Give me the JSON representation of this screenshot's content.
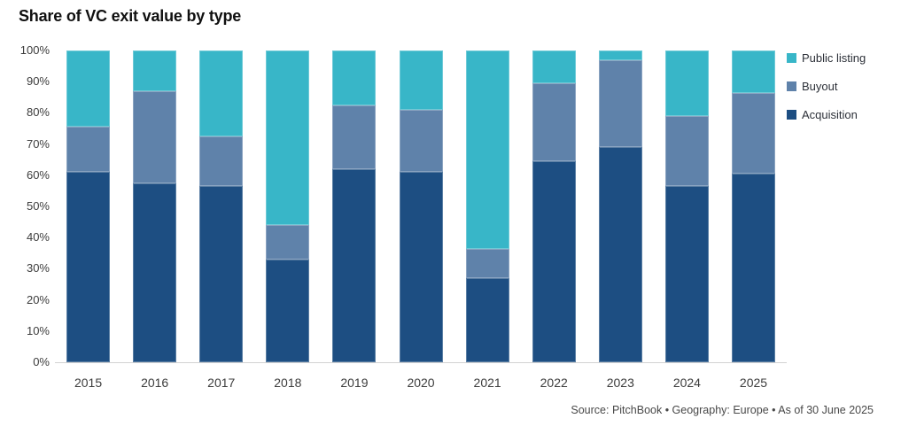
{
  "chart_data": {
    "type": "bar",
    "stacked": true,
    "title": "Share of VC exit value by type",
    "categories": [
      "2015",
      "2016",
      "2017",
      "2018",
      "2019",
      "2020",
      "2021",
      "2022",
      "2023",
      "2024",
      "2025"
    ],
    "series": [
      {
        "name": "Acquisition",
        "color": "#1d4e82",
        "values": [
          61.0,
          57.5,
          56.5,
          33.0,
          62.0,
          61.0,
          27.0,
          64.5,
          69.0,
          56.5,
          60.5
        ]
      },
      {
        "name": "Buyout",
        "color": "#5f82aa",
        "values": [
          14.5,
          29.5,
          16.0,
          11.0,
          20.5,
          20.0,
          9.5,
          25.0,
          28.0,
          22.5,
          26.0
        ]
      },
      {
        "name": "Public listing",
        "color": "#38b6c8",
        "values": [
          24.5,
          13.0,
          27.5,
          56.0,
          17.5,
          19.0,
          63.5,
          10.5,
          3.0,
          21.0,
          13.5
        ]
      }
    ],
    "ylabel": "",
    "xlabel": "",
    "ylim": [
      0,
      100
    ],
    "y_tick_labels": [
      "100%",
      "90%",
      "80%",
      "70%",
      "60%",
      "50%",
      "40%",
      "30%",
      "20%",
      "10%",
      "0%"
    ],
    "grid": false,
    "legend_position": "top-right"
  },
  "legend": [
    {
      "label": "Public listing",
      "color": "#38b6c8"
    },
    {
      "label": "Buyout",
      "color": "#5f82aa"
    },
    {
      "label": "Acquisition",
      "color": "#1d4e82"
    }
  ],
  "footer": {
    "source_text": "Source: PitchBook • Geography: Europe • As of 30 June 2025"
  }
}
